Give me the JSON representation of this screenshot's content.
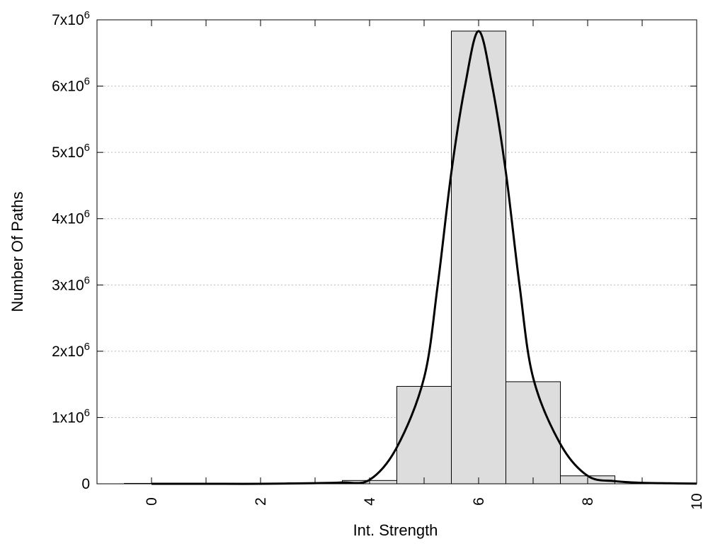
{
  "chart_data": {
    "type": "bar",
    "title": "",
    "xlabel": "Int. Strength",
    "ylabel": "Number Of Paths",
    "xlim": [
      -1,
      10
    ],
    "ylim": [
      0,
      7000000
    ],
    "grid": "horizontal dotted",
    "xticks": [
      0,
      2,
      4,
      6,
      8,
      10
    ],
    "yticks": [
      {
        "value": 0,
        "base": "0",
        "exp": ""
      },
      {
        "value": 1000000,
        "base": "1x10",
        "exp": "6"
      },
      {
        "value": 2000000,
        "base": "2x10",
        "exp": "6"
      },
      {
        "value": 3000000,
        "base": "3x10",
        "exp": "6"
      },
      {
        "value": 4000000,
        "base": "4x10",
        "exp": "6"
      },
      {
        "value": 5000000,
        "base": "5x10",
        "exp": "6"
      },
      {
        "value": 6000000,
        "base": "6x10",
        "exp": "6"
      },
      {
        "value": 7000000,
        "base": "7x10",
        "exp": "6"
      }
    ],
    "bars": {
      "bin_width": 1,
      "centers": [
        0,
        1,
        2,
        3,
        4,
        5,
        6,
        7,
        8
      ],
      "values": [
        6000,
        6000,
        7000,
        15000,
        50000,
        1470000,
        6830000,
        1540000,
        120000
      ],
      "fill": "#dddddd",
      "stroke": "#000000"
    },
    "curve": {
      "x": [
        0,
        1,
        2,
        3,
        3.5,
        4,
        4.5,
        5,
        5.25,
        5.5,
        5.75,
        6,
        6.25,
        6.5,
        6.75,
        7,
        7.5,
        8,
        8.5,
        9,
        9.5,
        10
      ],
      "y": [
        0,
        0,
        0,
        10000,
        20000,
        60000,
        550000,
        1600000,
        3000000,
        4700000,
        6000000,
        6830000,
        6000000,
        4700000,
        3000000,
        1600000,
        600000,
        120000,
        40000,
        15000,
        8000,
        3000
      ],
      "color": "#000000"
    }
  }
}
